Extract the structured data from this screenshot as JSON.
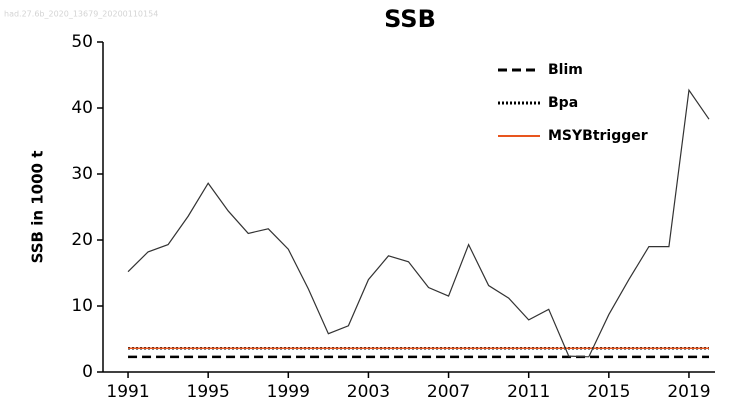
{
  "chart_data": {
    "type": "line",
    "watermark": "had.27.6b_2020_13679_20200110154",
    "title": "SSB",
    "y_label": "SSB in 1000 t",
    "x": [
      1991,
      1992,
      1993,
      1994,
      1995,
      1996,
      1997,
      1998,
      1999,
      2000,
      2001,
      2002,
      2003,
      2004,
      2005,
      2006,
      2007,
      2008,
      2009,
      2010,
      2011,
      2012,
      2013,
      2014,
      2015,
      2016,
      2017,
      2018,
      2019,
      2020
    ],
    "series": [
      {
        "color": "#333333",
        "values": [
          15.2,
          18.2,
          19.3,
          23.6,
          28.6,
          24.4,
          21.0,
          21.7,
          18.6,
          12.6,
          5.8,
          7.0,
          14.0,
          17.6,
          16.7,
          12.8,
          11.5,
          19.3,
          13.1,
          11.2,
          7.9,
          9.5,
          2.4,
          2.3,
          8.7,
          14.0,
          19.0,
          19.0,
          42.7,
          38.3
        ]
      }
    ],
    "reference_lines": [
      {
        "name": "Blim",
        "value": 2.3,
        "color": "#000000",
        "style": "dashed"
      },
      {
        "name": "Bpa",
        "value": 3.6,
        "color": "#000000",
        "style": "dotted"
      },
      {
        "name": "MSYBtrigger",
        "value": 3.6,
        "color": "#e8551e",
        "style": "solid"
      }
    ],
    "xlim": [
      1989.75,
      2020.3
    ],
    "xticks": [
      1991,
      1995,
      1999,
      2003,
      2007,
      2011,
      2015,
      2019
    ],
    "ylim": [
      0,
      50
    ],
    "yticks": [
      0,
      10,
      20,
      30,
      40,
      50
    ]
  }
}
